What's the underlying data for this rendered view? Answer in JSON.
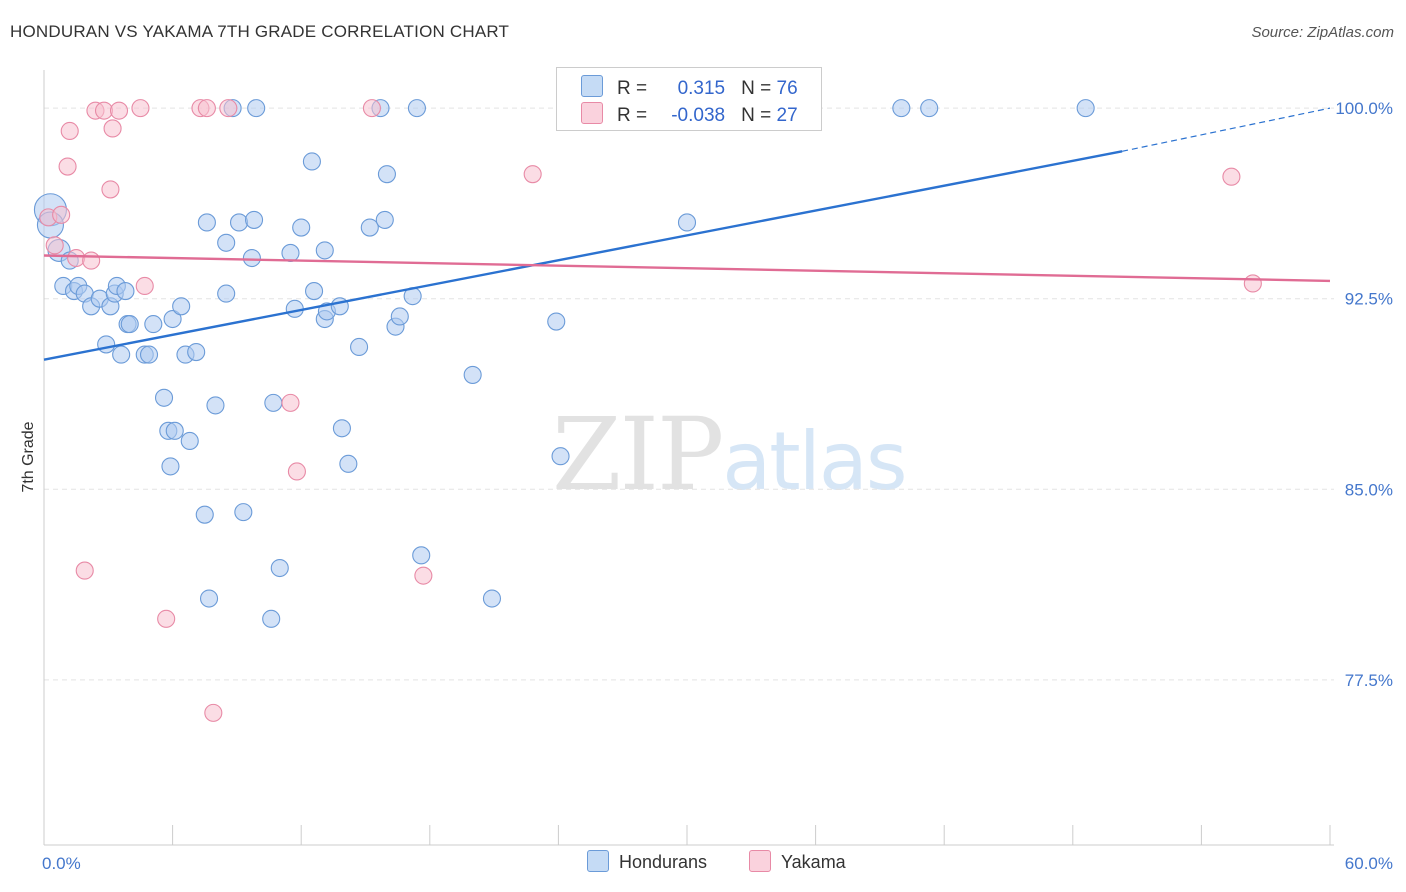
{
  "title": "HONDURAN VS YAKAMA 7TH GRADE CORRELATION CHART",
  "source": "Source: ZipAtlas.com",
  "watermark": {
    "part1": "ZIP",
    "part2": "atlas"
  },
  "colors": {
    "hondurans_fill": "#aecbf0",
    "hondurans_stroke": "#6b9bd8",
    "hondurans_line": "#2b72d0",
    "yakama_fill": "#f7c1d0",
    "yakama_stroke": "#e88aa6",
    "yakama_line": "#e06c94",
    "grid": "#e3e3e3",
    "tick_label": "#4477cc"
  },
  "legend": {
    "rows": [
      {
        "series": "Hondurans",
        "r_label": "R =",
        "r_value": "0.315",
        "n_label": "N =",
        "n_value": "76"
      },
      {
        "series": "Yakama",
        "r_label": "R =",
        "r_value": "-0.038",
        "n_label": "N =",
        "n_value": "27"
      }
    ]
  },
  "bottom_legend": [
    "Hondurans",
    "Yakama"
  ],
  "chart_data": {
    "type": "scatter",
    "title": "HONDURAN VS YAKAMA 7TH GRADE CORRELATION CHART",
    "xlabel": "",
    "ylabel": "7th Grade",
    "xlim": [
      0,
      60
    ],
    "ylim": [
      71.0,
      101.5
    ],
    "x_tick_labels": [
      "0.0%",
      "60.0%"
    ],
    "y_ticks": [
      {
        "value": 100.0,
        "label": "100.0%"
      },
      {
        "value": 92.5,
        "label": "92.5%"
      },
      {
        "value": 85.0,
        "label": "85.0%"
      },
      {
        "value": 77.5,
        "label": "77.5%"
      }
    ],
    "x_minor_ticks": [
      0,
      6,
      12,
      18,
      24,
      30,
      36,
      42,
      48,
      54,
      60
    ],
    "grid": true,
    "series": [
      {
        "name": "Hondurans",
        "r": 0.315,
        "n": 76,
        "trend": {
          "x": [
            0,
            50.3
          ],
          "y": [
            90.1,
            98.3
          ],
          "dashed_to": [
            60,
            100.0
          ]
        },
        "points": [
          [
            0.3,
            96.0
          ],
          [
            0.3,
            95.4
          ],
          [
            0.7,
            94.4
          ],
          [
            1.2,
            94.0
          ],
          [
            0.9,
            93.0
          ],
          [
            1.4,
            92.8
          ],
          [
            1.6,
            93.0
          ],
          [
            1.9,
            92.7
          ],
          [
            2.2,
            92.2
          ],
          [
            2.6,
            92.5
          ],
          [
            3.1,
            92.2
          ],
          [
            3.3,
            92.7
          ],
          [
            3.4,
            93.0
          ],
          [
            3.8,
            92.8
          ],
          [
            2.9,
            90.7
          ],
          [
            3.6,
            90.3
          ],
          [
            3.9,
            91.5
          ],
          [
            4.0,
            91.5
          ],
          [
            4.7,
            90.3
          ],
          [
            4.9,
            90.3
          ],
          [
            5.1,
            91.5
          ],
          [
            5.6,
            88.6
          ],
          [
            6.0,
            91.7
          ],
          [
            6.4,
            92.2
          ],
          [
            6.6,
            90.3
          ],
          [
            7.1,
            90.4
          ],
          [
            5.8,
            87.3
          ],
          [
            5.9,
            85.9
          ],
          [
            6.1,
            87.3
          ],
          [
            6.8,
            86.9
          ],
          [
            7.5,
            84.0
          ],
          [
            7.7,
            80.7
          ],
          [
            7.6,
            95.5
          ],
          [
            8.0,
            88.3
          ],
          [
            8.5,
            94.7
          ],
          [
            8.5,
            92.7
          ],
          [
            8.8,
            100.0
          ],
          [
            9.1,
            95.5
          ],
          [
            9.3,
            84.1
          ],
          [
            9.8,
            95.6
          ],
          [
            9.7,
            94.1
          ],
          [
            9.9,
            100.0
          ],
          [
            10.6,
            79.9
          ],
          [
            10.7,
            88.4
          ],
          [
            11.0,
            81.9
          ],
          [
            11.5,
            94.3
          ],
          [
            11.7,
            92.1
          ],
          [
            12.0,
            95.3
          ],
          [
            12.5,
            97.9
          ],
          [
            12.6,
            92.8
          ],
          [
            13.1,
            94.4
          ],
          [
            13.1,
            91.7
          ],
          [
            13.2,
            92.0
          ],
          [
            13.8,
            92.2
          ],
          [
            13.9,
            87.4
          ],
          [
            14.2,
            86.0
          ],
          [
            14.7,
            90.6
          ],
          [
            15.2,
            95.3
          ],
          [
            15.7,
            100.0
          ],
          [
            15.9,
            95.6
          ],
          [
            16.0,
            97.4
          ],
          [
            16.4,
            91.4
          ],
          [
            16.6,
            91.8
          ],
          [
            17.2,
            92.6
          ],
          [
            17.4,
            100.0
          ],
          [
            17.6,
            82.4
          ],
          [
            20.0,
            89.5
          ],
          [
            20.9,
            80.7
          ],
          [
            23.9,
            91.6
          ],
          [
            24.1,
            86.3
          ],
          [
            25.0,
            100.0
          ],
          [
            25.7,
            100.0
          ],
          [
            30.0,
            95.5
          ],
          [
            40.0,
            100.0
          ],
          [
            41.3,
            100.0
          ],
          [
            48.6,
            100.0
          ]
        ]
      },
      {
        "name": "Yakama",
        "r": -0.038,
        "n": 27,
        "trend": {
          "x": [
            0,
            60
          ],
          "y": [
            94.2,
            93.2
          ]
        },
        "points": [
          [
            0.2,
            95.7
          ],
          [
            0.5,
            94.6
          ],
          [
            0.8,
            95.8
          ],
          [
            1.1,
            97.7
          ],
          [
            1.2,
            99.1
          ],
          [
            1.5,
            94.1
          ],
          [
            1.9,
            81.8
          ],
          [
            2.2,
            94.0
          ],
          [
            2.4,
            99.9
          ],
          [
            2.8,
            99.9
          ],
          [
            3.1,
            96.8
          ],
          [
            3.2,
            99.2
          ],
          [
            3.5,
            99.9
          ],
          [
            4.5,
            100.0
          ],
          [
            4.7,
            93.0
          ],
          [
            5.7,
            79.9
          ],
          [
            7.3,
            100.0
          ],
          [
            7.6,
            100.0
          ],
          [
            7.9,
            76.2
          ],
          [
            8.6,
            100.0
          ],
          [
            11.5,
            88.4
          ],
          [
            11.8,
            85.7
          ],
          [
            15.3,
            100.0
          ],
          [
            17.7,
            81.6
          ],
          [
            22.8,
            97.4
          ],
          [
            55.4,
            97.3
          ],
          [
            56.4,
            93.1
          ]
        ]
      }
    ]
  }
}
